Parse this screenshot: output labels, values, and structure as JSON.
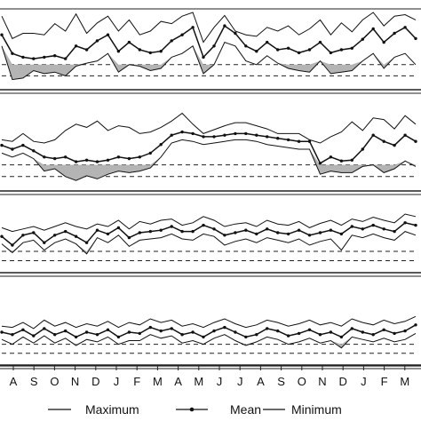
{
  "chart_data": {
    "type": "line",
    "panels": 4,
    "month_ticks": [
      "A",
      "S",
      "O",
      "N",
      "D",
      "J",
      "F",
      "M",
      "A",
      "M",
      "J",
      "J",
      "A",
      "S",
      "O",
      "N",
      "D",
      "J",
      "F",
      "M"
    ],
    "x": [
      0,
      0.5,
      1,
      1.5,
      2,
      2.5,
      3,
      3.5,
      4,
      4.5,
      5,
      5.5,
      6,
      6.5,
      7,
      7.5,
      8,
      8.5,
      9,
      9.5,
      10,
      10.5,
      11,
      11.5,
      12,
      12.5,
      13,
      13.5,
      14,
      14.5,
      15,
      15.5,
      16,
      16.5,
      17,
      17.5,
      18,
      18.5,
      19,
      19.5
    ],
    "thresholds": [
      0.3,
      0.15
    ],
    "legend": [
      "Maximum",
      "Mean",
      "Minimum"
    ],
    "grid": false,
    "series": [
      {
        "panel": 1,
        "max": [
          0.95,
          0.65,
          0.72,
          0.72,
          0.7,
          0.85,
          0.75,
          0.98,
          0.72,
          0.86,
          0.95,
          0.75,
          0.9,
          0.7,
          0.75,
          0.88,
          0.85,
          0.95,
          1.0,
          0.6,
          0.8,
          0.96,
          0.75,
          0.7,
          0.68,
          0.8,
          0.75,
          0.82,
          0.7,
          0.78,
          0.9,
          0.7,
          0.86,
          0.74,
          0.9,
          1.0,
          0.82,
          0.95,
          0.97,
          0.9
        ],
        "mean": [
          0.7,
          0.45,
          0.4,
          0.38,
          0.4,
          0.42,
          0.38,
          0.55,
          0.5,
          0.62,
          0.7,
          0.48,
          0.6,
          0.5,
          0.46,
          0.48,
          0.62,
          0.7,
          0.8,
          0.4,
          0.55,
          0.82,
          0.72,
          0.55,
          0.48,
          0.6,
          0.5,
          0.52,
          0.46,
          0.5,
          0.6,
          0.46,
          0.5,
          0.52,
          0.64,
          0.78,
          0.6,
          0.72,
          0.8,
          0.65
        ],
        "min": [
          0.55,
          0.1,
          0.12,
          0.22,
          0.18,
          0.2,
          0.15,
          0.28,
          0.32,
          0.35,
          0.45,
          0.2,
          0.3,
          0.28,
          0.22,
          0.25,
          0.4,
          0.45,
          0.55,
          0.18,
          0.3,
          0.6,
          0.55,
          0.35,
          0.3,
          0.42,
          0.32,
          0.25,
          0.22,
          0.2,
          0.35,
          0.18,
          0.2,
          0.22,
          0.35,
          0.45,
          0.25,
          0.4,
          0.45,
          0.3
        ]
      },
      {
        "panel": 2,
        "max": [
          0.62,
          0.6,
          0.7,
          0.6,
          0.58,
          0.62,
          0.74,
          0.82,
          0.78,
          0.86,
          0.74,
          0.8,
          0.78,
          0.7,
          0.72,
          0.78,
          0.86,
          0.96,
          0.82,
          0.7,
          0.75,
          0.8,
          0.84,
          0.84,
          0.8,
          0.76,
          0.7,
          0.7,
          0.7,
          0.62,
          0.58,
          0.66,
          0.72,
          0.85,
          0.74,
          0.9,
          0.88,
          0.76,
          0.93,
          0.82
        ],
        "mean": [
          0.55,
          0.5,
          0.55,
          0.48,
          0.4,
          0.38,
          0.4,
          0.34,
          0.36,
          0.34,
          0.36,
          0.4,
          0.38,
          0.4,
          0.45,
          0.56,
          0.68,
          0.72,
          0.7,
          0.66,
          0.66,
          0.68,
          0.7,
          0.7,
          0.68,
          0.66,
          0.64,
          0.62,
          0.6,
          0.6,
          0.32,
          0.4,
          0.35,
          0.36,
          0.5,
          0.68,
          0.6,
          0.55,
          0.68,
          0.6
        ],
        "min": [
          0.45,
          0.4,
          0.45,
          0.38,
          0.22,
          0.25,
          0.15,
          0.1,
          0.16,
          0.12,
          0.18,
          0.22,
          0.2,
          0.22,
          0.26,
          0.4,
          0.58,
          0.62,
          0.6,
          0.56,
          0.58,
          0.6,
          0.62,
          0.62,
          0.6,
          0.56,
          0.54,
          0.52,
          0.5,
          0.5,
          0.18,
          0.22,
          0.2,
          0.2,
          0.28,
          0.3,
          0.2,
          0.25,
          0.35,
          0.28
        ]
      },
      {
        "panel": 3,
        "max": [
          0.68,
          0.62,
          0.66,
          0.7,
          0.64,
          0.7,
          0.76,
          0.7,
          0.66,
          0.74,
          0.7,
          0.8,
          0.66,
          0.78,
          0.74,
          0.8,
          0.82,
          0.72,
          0.76,
          0.86,
          0.8,
          0.7,
          0.74,
          0.76,
          0.7,
          0.8,
          0.74,
          0.72,
          0.78,
          0.68,
          0.75,
          0.8,
          0.72,
          0.82,
          0.78,
          0.85,
          0.8,
          0.76,
          0.9,
          0.86
        ],
        "mean": [
          0.54,
          0.4,
          0.56,
          0.6,
          0.44,
          0.56,
          0.62,
          0.54,
          0.44,
          0.64,
          0.58,
          0.68,
          0.52,
          0.6,
          0.62,
          0.64,
          0.7,
          0.62,
          0.62,
          0.72,
          0.66,
          0.56,
          0.6,
          0.64,
          0.58,
          0.66,
          0.6,
          0.58,
          0.64,
          0.56,
          0.6,
          0.64,
          0.58,
          0.7,
          0.66,
          0.72,
          0.66,
          0.62,
          0.76,
          0.72
        ],
        "min": [
          0.42,
          0.28,
          0.44,
          0.48,
          0.32,
          0.44,
          0.5,
          0.42,
          0.26,
          0.52,
          0.44,
          0.56,
          0.38,
          0.48,
          0.5,
          0.52,
          0.58,
          0.5,
          0.48,
          0.58,
          0.54,
          0.4,
          0.46,
          0.5,
          0.44,
          0.52,
          0.48,
          0.44,
          0.5,
          0.4,
          0.46,
          0.5,
          0.32,
          0.56,
          0.52,
          0.58,
          0.52,
          0.48,
          0.62,
          0.56
        ]
      },
      {
        "panel": 4,
        "max": [
          0.6,
          0.58,
          0.66,
          0.56,
          0.7,
          0.6,
          0.66,
          0.58,
          0.64,
          0.6,
          0.68,
          0.58,
          0.66,
          0.62,
          0.72,
          0.66,
          0.7,
          0.6,
          0.64,
          0.58,
          0.66,
          0.72,
          0.64,
          0.58,
          0.62,
          0.7,
          0.66,
          0.6,
          0.64,
          0.7,
          0.62,
          0.66,
          0.6,
          0.72,
          0.66,
          0.62,
          0.7,
          0.64,
          0.68,
          0.76
        ],
        "mean": [
          0.5,
          0.46,
          0.54,
          0.44,
          0.56,
          0.46,
          0.52,
          0.42,
          0.5,
          0.46,
          0.54,
          0.42,
          0.5,
          0.48,
          0.58,
          0.52,
          0.56,
          0.46,
          0.5,
          0.42,
          0.52,
          0.58,
          0.5,
          0.42,
          0.46,
          0.56,
          0.52,
          0.44,
          0.48,
          0.54,
          0.46,
          0.5,
          0.42,
          0.56,
          0.5,
          0.46,
          0.54,
          0.48,
          0.52,
          0.62
        ],
        "min": [
          0.38,
          0.3,
          0.42,
          0.32,
          0.44,
          0.32,
          0.4,
          0.28,
          0.38,
          0.34,
          0.42,
          0.3,
          0.36,
          0.36,
          0.46,
          0.4,
          0.44,
          0.32,
          0.36,
          0.3,
          0.4,
          0.46,
          0.36,
          0.28,
          0.34,
          0.42,
          0.38,
          0.3,
          0.34,
          0.4,
          0.32,
          0.36,
          0.24,
          0.42,
          0.38,
          0.34,
          0.4,
          0.34,
          0.38,
          0.48
        ]
      }
    ]
  }
}
